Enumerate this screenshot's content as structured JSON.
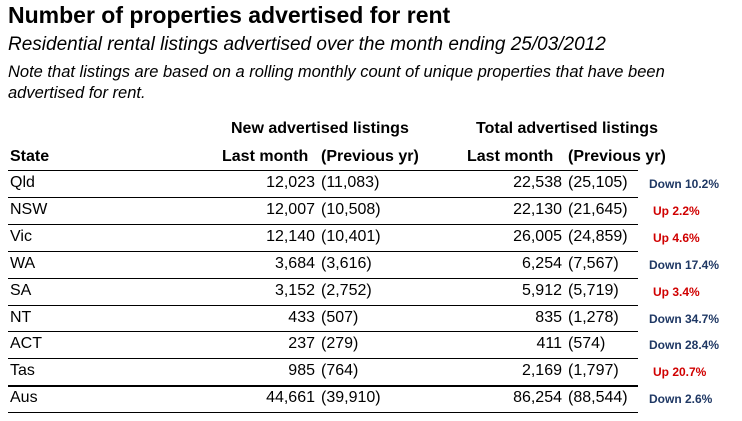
{
  "title": "Number of properties advertised for rent",
  "subtitle": "Residential rental listings advertised over the month ending 25/03/2012",
  "note": "Note that listings are based on a rolling monthly count of unique properties that have been advertised for rent.",
  "headers": {
    "new_group": "New advertised listings",
    "total_group": "Total advertised listings",
    "state": "State",
    "new_last": "Last month",
    "new_prev": "(Previous yr)",
    "total_last": "Last month",
    "total_prev": "(Previous yr)"
  },
  "colors": {
    "down": "#1f3864",
    "up": "#d00000"
  },
  "rows": [
    {
      "state": "Qld",
      "new_last": "12,023",
      "new_prev": "(11,083)",
      "total_last": "22,538",
      "total_prev": "(25,105)",
      "change": "Down 10.2%",
      "dir": "down"
    },
    {
      "state": "NSW",
      "new_last": "12,007",
      "new_prev": "(10,508)",
      "total_last": "22,130",
      "total_prev": "(21,645)",
      "change": "Up 2.2%",
      "dir": "up"
    },
    {
      "state": "Vic",
      "new_last": "12,140",
      "new_prev": "(10,401)",
      "total_last": "26,005",
      "total_prev": "(24,859)",
      "change": "Up 4.6%",
      "dir": "up"
    },
    {
      "state": "WA",
      "new_last": "3,684",
      "new_prev": "(3,616)",
      "total_last": "6,254",
      "total_prev": "(7,567)",
      "change": "Down 17.4%",
      "dir": "down"
    },
    {
      "state": "SA",
      "new_last": "3,152",
      "new_prev": "(2,752)",
      "total_last": "5,912",
      "total_prev": "(5,719)",
      "change": "Up 3.4%",
      "dir": "up"
    },
    {
      "state": "NT",
      "new_last": "433",
      "new_prev": "(507)",
      "total_last": "835",
      "total_prev": "(1,278)",
      "change": "Down 34.7%",
      "dir": "down"
    },
    {
      "state": "ACT",
      "new_last": "237",
      "new_prev": "(279)",
      "total_last": "411",
      "total_prev": "(574)",
      "change": "Down 28.4%",
      "dir": "down"
    },
    {
      "state": "Tas",
      "new_last": "985",
      "new_prev": "(764)",
      "total_last": "2,169",
      "total_prev": "(1,797)",
      "change": "Up 20.7%",
      "dir": "up"
    },
    {
      "state": "Aus",
      "new_last": "44,661",
      "new_prev": "(39,910)",
      "total_last": "86,254",
      "total_prev": "(88,544)",
      "change": "Down 2.6%",
      "dir": "down"
    }
  ]
}
